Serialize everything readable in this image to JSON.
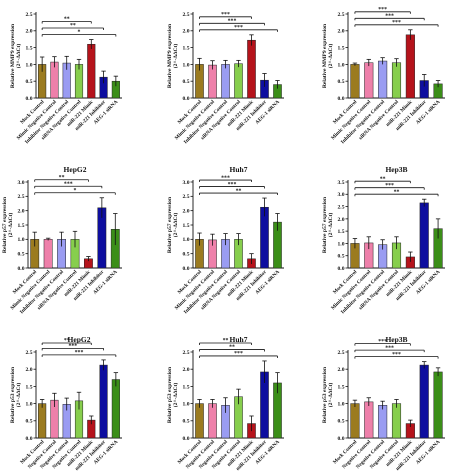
{
  "colors": [
    "#9b7b20",
    "#ee80aa",
    "#9a9cf2",
    "#87ce4d",
    "#b5131b",
    "#0e0e9f",
    "#3b8e18"
  ],
  "chart_data": [
    {
      "type": "bar",
      "title": "",
      "ylabel": "Relative MMP9 expression",
      "ylabel_unit": "(2^-ΔΔCt)",
      "ylim": [
        0,
        2.5
      ],
      "yticks": [
        "0.0",
        "0.5",
        "1.0",
        "1.5",
        "2.0",
        "2.5"
      ],
      "categories": [
        "Mock Control",
        "Mimic Negative Control",
        "Inhibitor Negative Control",
        "siRNA Negative Control",
        "miR-221 Mimic",
        "miR-221 Inhibitor",
        "AEG-1 siRNA"
      ],
      "values": [
        1.0,
        1.07,
        1.04,
        1.0,
        1.6,
        0.62,
        0.5
      ],
      "errors": [
        0.22,
        0.16,
        0.2,
        0.15,
        0.14,
        0.18,
        0.15
      ],
      "brackets": [
        {
          "from": 0,
          "to": 4,
          "label": "**"
        },
        {
          "from": 0,
          "to": 5,
          "label": "**"
        },
        {
          "from": 0,
          "to": 6,
          "label": "*"
        }
      ],
      "show_categories": true
    },
    {
      "type": "bar",
      "title": "",
      "ylabel": "Relative MMP9 expression",
      "ylabel_unit": "(2^-ΔΔCt)",
      "ylim": [
        0,
        2.5
      ],
      "yticks": [
        "0.0",
        "0.5",
        "1.0",
        "1.5",
        "2.0",
        "2.5"
      ],
      "categories": [
        "Mock Control",
        "Mimic Negative Control",
        "Inhibitor Negative Control",
        "siRNA Negative Control",
        "miR-221 Mimic",
        "miR-221 Inhibitor",
        "AEG-1 siRNA"
      ],
      "values": [
        1.0,
        0.98,
        1.0,
        1.02,
        1.72,
        0.53,
        0.4
      ],
      "errors": [
        0.18,
        0.13,
        0.12,
        0.1,
        0.16,
        0.2,
        0.12
      ],
      "brackets": [
        {
          "from": 0,
          "to": 4,
          "label": "***"
        },
        {
          "from": 0,
          "to": 5,
          "label": "***"
        },
        {
          "from": 0,
          "to": 6,
          "label": "***"
        }
      ],
      "show_categories": true
    },
    {
      "type": "bar",
      "title": "",
      "ylabel": "Relative MMP9 expression",
      "ylabel_unit": "(2^-ΔΔCt)",
      "ylim": [
        0,
        2.5
      ],
      "yticks": [
        "0.0",
        "0.5",
        "1.0",
        "1.5",
        "2.0",
        "2.5"
      ],
      "categories": [
        "Mock Control",
        "Mimic Negative Control",
        "Inhibitor Negative Control",
        "siRNA Negative Control",
        "miR-221 Mimic",
        "miR-221 Inhibitor",
        "AEG-1 siRNA"
      ],
      "values": [
        1.0,
        1.05,
        1.1,
        1.05,
        1.88,
        0.52,
        0.42
      ],
      "errors": [
        0.04,
        0.1,
        0.1,
        0.12,
        0.15,
        0.18,
        0.1
      ],
      "brackets": [
        {
          "from": 0,
          "to": 4,
          "label": "***"
        },
        {
          "from": 0,
          "to": 5,
          "label": "***"
        },
        {
          "from": 0,
          "to": 6,
          "label": "***"
        }
      ],
      "show_categories": true
    },
    {
      "type": "bar",
      "title": "HepG2",
      "ylabel": "Relative p57 expression",
      "ylabel_unit": "(2^-ΔΔCt)",
      "ylim": [
        0,
        3.0
      ],
      "yticks": [
        "0.0",
        "0.5",
        "1.0",
        "1.5",
        "2.0",
        "2.5",
        "3.0"
      ],
      "categories": [
        "Mock Control",
        "Mimic Negative Control",
        "Inhibitor Negative Control",
        "siRNA Negative Control",
        "miR-221 Mimic",
        "miR-221 Inhibitor",
        "AEG-1 siRNA"
      ],
      "values": [
        1.0,
        1.0,
        1.0,
        1.0,
        0.32,
        2.1,
        1.35
      ],
      "errors": [
        0.25,
        0.04,
        0.25,
        0.28,
        0.08,
        0.35,
        0.55
      ],
      "brackets": [
        {
          "from": 0,
          "to": 4,
          "label": "**"
        },
        {
          "from": 0,
          "to": 5,
          "label": "***"
        },
        {
          "from": 0,
          "to": 6,
          "label": "*"
        }
      ],
      "show_categories": true
    },
    {
      "type": "bar",
      "title": "Huh7",
      "ylabel": "Relative p57 expression",
      "ylabel_unit": "(2^-ΔΔCt)",
      "ylim": [
        0,
        3.0
      ],
      "yticks": [
        "0.0",
        "0.5",
        "1.0",
        "1.5",
        "2.0",
        "2.5",
        "3.0"
      ],
      "categories": [
        "Mock Control",
        "Mimic Negative Control",
        "Inhibitor Negative Control",
        "siRNA Negative Control",
        "miR-221 Mimic",
        "miR-221 Inhibitor",
        "AEG-1 siRNA"
      ],
      "values": [
        1.0,
        0.98,
        1.0,
        1.0,
        0.32,
        2.12,
        1.6
      ],
      "errors": [
        0.22,
        0.2,
        0.2,
        0.2,
        0.18,
        0.32,
        0.3
      ],
      "brackets": [
        {
          "from": 0,
          "to": 4,
          "label": "***"
        },
        {
          "from": 0,
          "to": 5,
          "label": "***"
        },
        {
          "from": 0,
          "to": 6,
          "label": "**"
        }
      ],
      "show_categories": true
    },
    {
      "type": "bar",
      "title": "Hep3B",
      "ylabel": "Relative p57 expression",
      "ylabel_unit": "(2^-ΔΔCt)",
      "ylim": [
        0,
        3.5
      ],
      "yticks": [
        "0.0",
        "0.5",
        "1.0",
        "1.5",
        "2.0",
        "2.5",
        "3.0",
        "3.5"
      ],
      "categories": [
        "Mock Control",
        "Mimic Negative Control",
        "Inhibitor Negative Control",
        "siRNA Negative Control",
        "miR-221 Mimic",
        "miR-221 Inhibitor",
        "AEG-1 siRNA"
      ],
      "values": [
        1.0,
        1.02,
        0.95,
        1.02,
        0.45,
        2.65,
        1.6
      ],
      "errors": [
        0.2,
        0.25,
        0.2,
        0.25,
        0.2,
        0.15,
        0.4
      ],
      "brackets": [
        {
          "from": 0,
          "to": 4,
          "label": "**"
        },
        {
          "from": 0,
          "to": 5,
          "label": "***"
        },
        {
          "from": 0,
          "to": 6,
          "label": "**"
        }
      ],
      "show_categories": true
    },
    {
      "type": "bar",
      "title": "HepG2",
      "ylabel": "Relative p53 expression",
      "ylabel_unit": "(2^-ΔΔCt)",
      "ylim": [
        0,
        2.5
      ],
      "yticks": [
        "0.0",
        "0.5",
        "1.0",
        "1.5",
        "2.0",
        "2.5"
      ],
      "categories": [
        "Mock Control",
        "Negative Control",
        "Negative Control",
        "Negative Control",
        "miR-221 Mimic",
        "miR-221 Inhibitor",
        "AEG-1 siRNA"
      ],
      "values": [
        1.0,
        1.1,
        0.98,
        1.08,
        0.52,
        2.12,
        1.7
      ],
      "errors": [
        0.12,
        0.2,
        0.18,
        0.25,
        0.12,
        0.15,
        0.2
      ],
      "brackets": [
        {
          "from": 0,
          "to": 4,
          "label": "**"
        },
        {
          "from": 0,
          "to": 5,
          "label": "***"
        },
        {
          "from": 0,
          "to": 6,
          "label": "***"
        }
      ],
      "show_categories": true
    },
    {
      "type": "bar",
      "title": "Huh7",
      "ylabel": "Relative p53 expression",
      "ylabel_unit": "(2^-ΔΔCt)",
      "ylim": [
        0,
        2.5
      ],
      "yticks": [
        "0.0",
        "0.5",
        "1.0",
        "1.5",
        "2.0",
        "2.5"
      ],
      "categories": [
        "Mock Control",
        "Negative Control",
        "Negative Control",
        "Negative Control",
        "miR-221 Mimic",
        "miR-221 Inhibitor",
        "AEG-1 siRNA"
      ],
      "values": [
        1.0,
        1.0,
        0.95,
        1.2,
        0.42,
        1.92,
        1.6
      ],
      "errors": [
        0.12,
        0.12,
        0.22,
        0.22,
        0.22,
        0.32,
        0.3
      ],
      "brackets": [
        {
          "from": 0,
          "to": 4,
          "label": "**"
        },
        {
          "from": 0,
          "to": 5,
          "label": "**"
        },
        {
          "from": 0,
          "to": 6,
          "label": "***"
        }
      ],
      "show_categories": true
    },
    {
      "type": "bar",
      "title": "Hep3B",
      "ylabel": "Relative p53 expression",
      "ylabel_unit": "(2^-ΔΔCt)",
      "ylim": [
        0,
        2.5
      ],
      "yticks": [
        "0.0",
        "0.5",
        "1.0",
        "1.5",
        "2.0",
        "2.5"
      ],
      "categories": [
        "Mock Control",
        "Negative Control",
        "Negative Control",
        "Negative Control",
        "miR-221 Mimic",
        "miR-221 Inhibitor",
        "AEG-1 siRNA"
      ],
      "values": [
        1.0,
        1.05,
        0.95,
        1.0,
        0.42,
        2.12,
        1.92
      ],
      "errors": [
        0.1,
        0.12,
        0.12,
        0.12,
        0.1,
        0.1,
        0.12
      ],
      "brackets": [
        {
          "from": 0,
          "to": 4,
          "label": "***"
        },
        {
          "from": 0,
          "to": 5,
          "label": "***"
        },
        {
          "from": 0,
          "to": 6,
          "label": "***"
        }
      ],
      "show_categories": true
    }
  ]
}
